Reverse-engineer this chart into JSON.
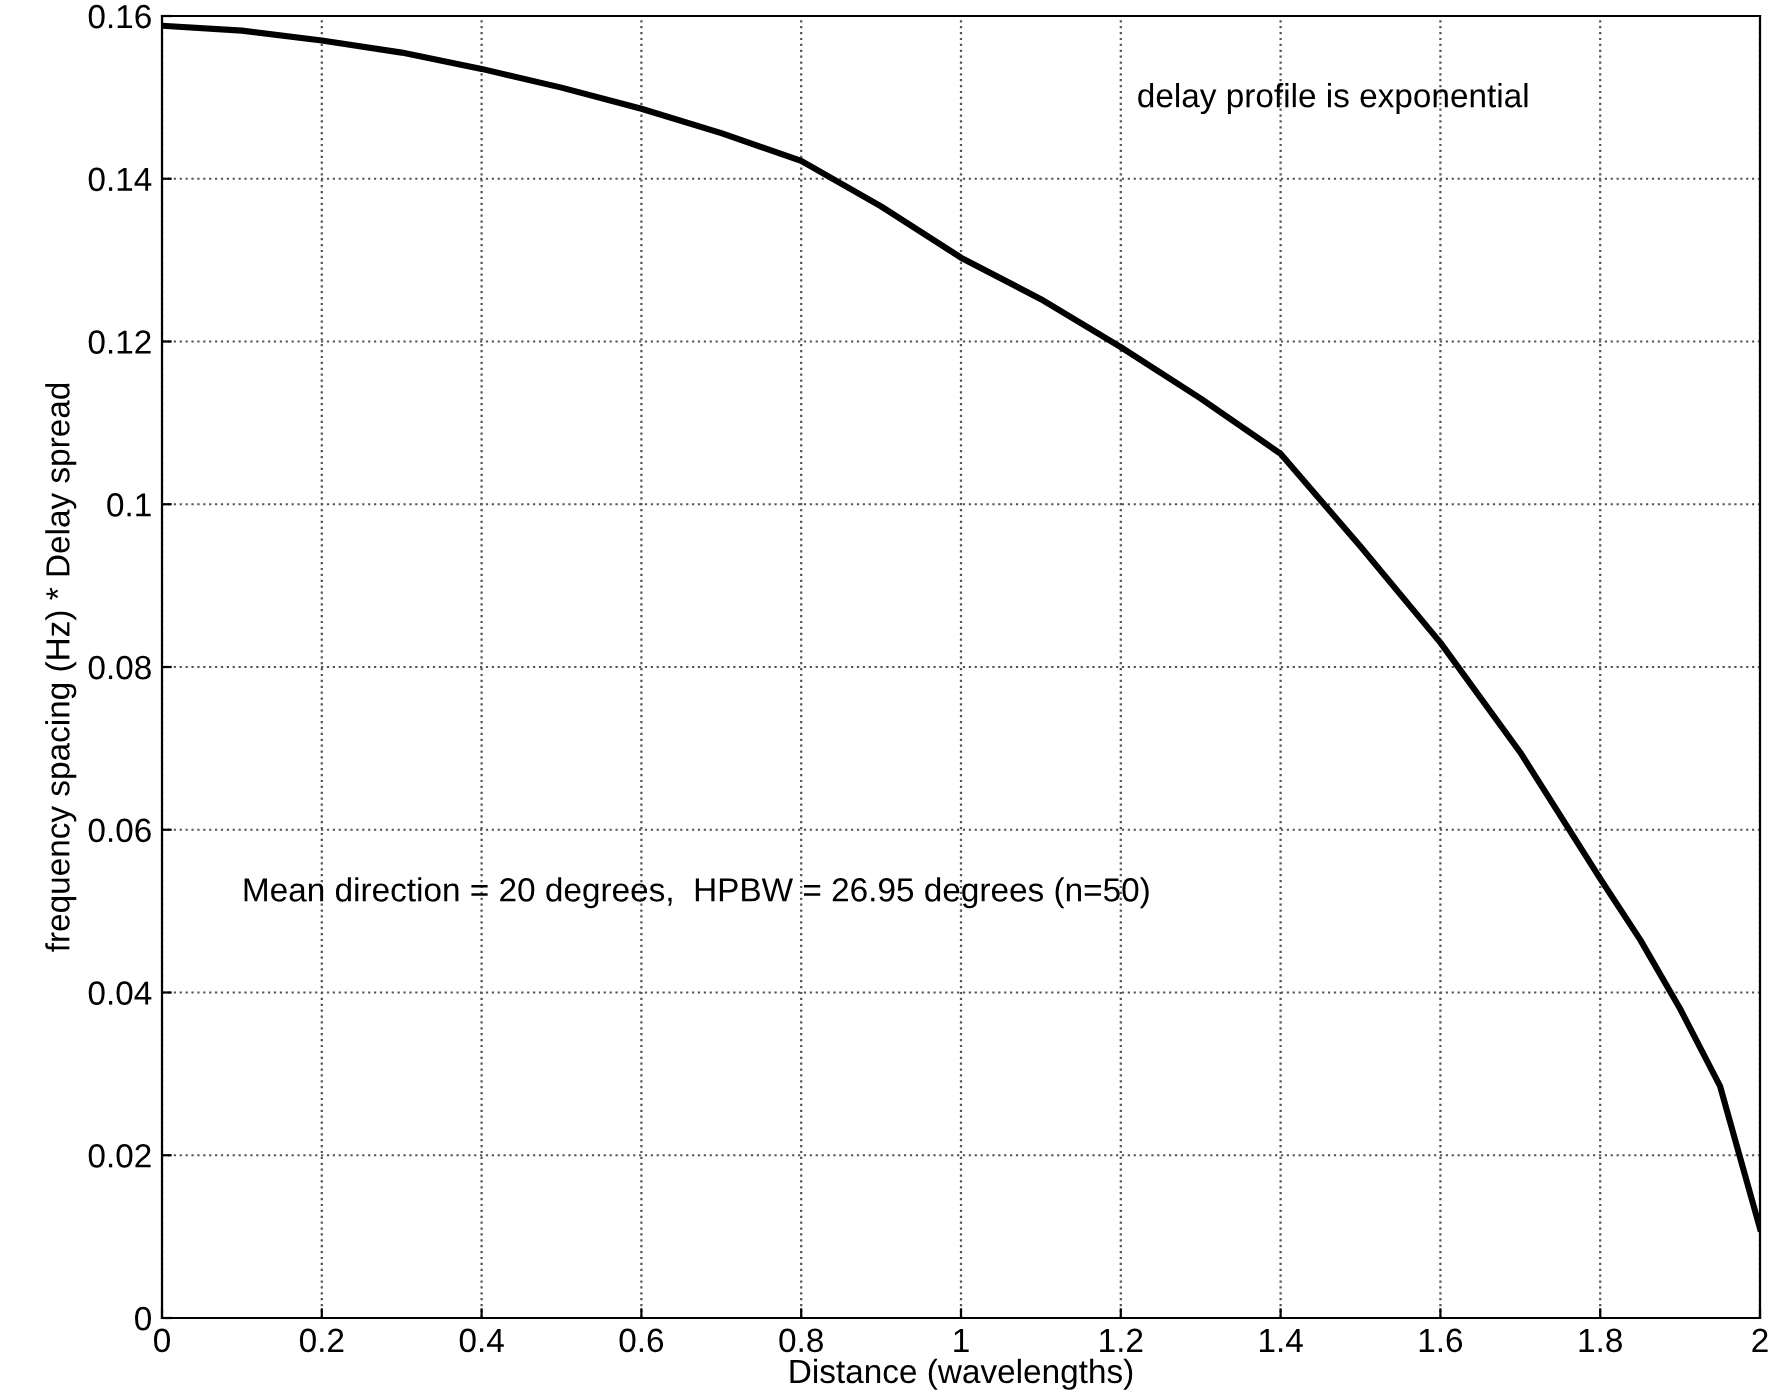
{
  "chart_data": {
    "type": "line",
    "xlabel": "Distance (wavelengths)",
    "ylabel": "frequency spacing (Hz) * Delay spread",
    "annotations": [
      "delay profile is exponential",
      "Mean direction = 20 degrees,  HPBW = 26.95 degrees (n=50)"
    ],
    "series": [
      {
        "color": "#000000",
        "x": [
          0,
          0.1,
          0.2,
          0.3,
          0.4,
          0.5,
          0.6,
          0.7,
          0.8,
          0.9,
          1.0,
          1.1,
          1.2,
          1.3,
          1.4,
          1.5,
          1.6,
          1.7,
          1.8,
          1.85,
          1.9,
          1.95,
          2.0
        ],
        "values": [
          0.1588,
          0.1582,
          0.157,
          0.1555,
          0.1535,
          0.1512,
          0.1486,
          0.1456,
          0.1422,
          0.1366,
          0.1303,
          0.1252,
          0.1193,
          0.113,
          0.1062,
          0.0948,
          0.083,
          0.0695,
          0.054,
          0.0465,
          0.038,
          0.0285,
          0.011
        ]
      }
    ],
    "xlim": [
      0,
      2
    ],
    "ylim": [
      0,
      0.16
    ],
    "xticks": [
      0,
      0.2,
      0.4,
      0.6,
      0.8,
      1,
      1.2,
      1.4,
      1.6,
      1.8,
      2
    ],
    "yticks": [
      0,
      0.02,
      0.04,
      0.06,
      0.08,
      0.1,
      0.12,
      0.14,
      0.16
    ],
    "grid": true,
    "legend": false,
    "line_style": "solid",
    "marker": "none"
  }
}
